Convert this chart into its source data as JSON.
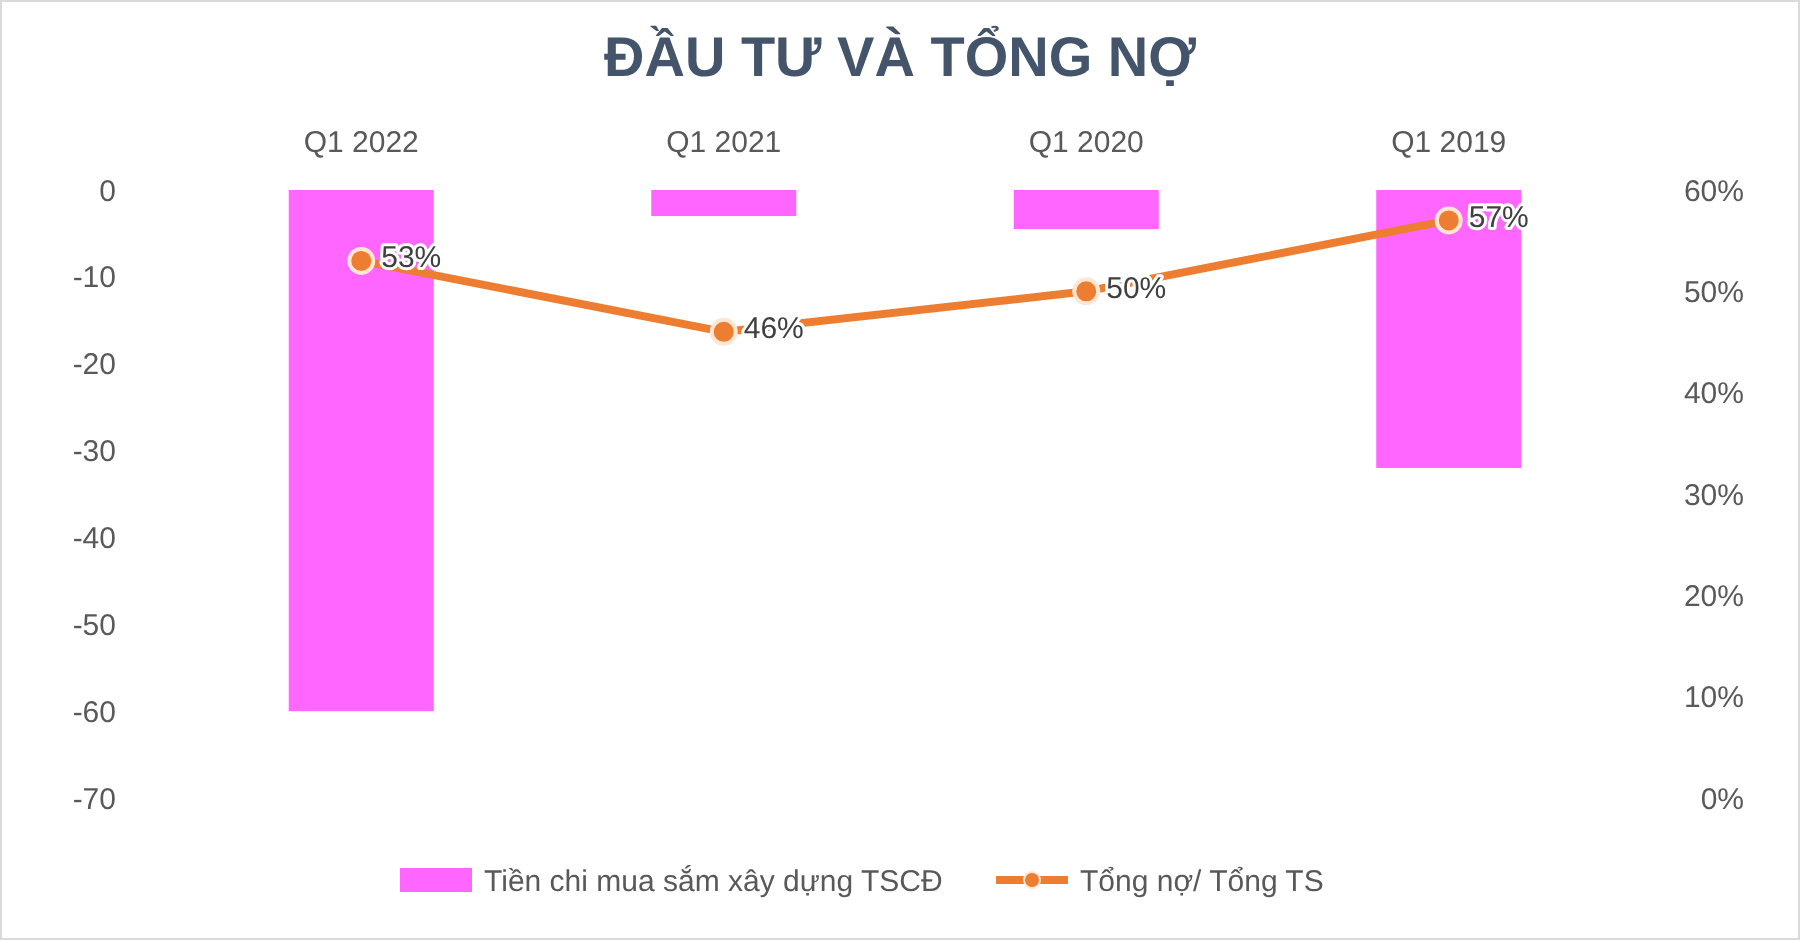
{
  "chart_data": {
    "type": "bar",
    "title": "ĐẦU TƯ VÀ TỔNG NỢ",
    "categories": [
      "Q1 2022",
      "Q1 2021",
      "Q1 2020",
      "Q1 2019"
    ],
    "series": [
      {
        "name": "Tiền chi mua sắm xây dựng TSCĐ",
        "color": "#ff66ff",
        "values": [
          -60,
          -3,
          -4.5,
          -32
        ]
      },
      {
        "name": "Tổng nợ/ Tổng TS",
        "type": "line",
        "axis": "y2",
        "color": "#ed7d31",
        "values": [
          53,
          46,
          50,
          57
        ],
        "value_labels": [
          "53%",
          "46%",
          "50%",
          "57%"
        ],
        "marker": "circle"
      }
    ],
    "ylim": [
      -70,
      0
    ],
    "yticks": [
      -70,
      -60,
      -50,
      -40,
      -30,
      -20,
      -10,
      0
    ],
    "y2lim": [
      0,
      60
    ],
    "y2ticks": [
      {
        "value": 0,
        "label": "0%"
      },
      {
        "value": 10,
        "label": "10%"
      },
      {
        "value": 20,
        "label": "20%"
      },
      {
        "value": 30,
        "label": "30%"
      },
      {
        "value": 40,
        "label": "40%"
      },
      {
        "value": 50,
        "label": "50%"
      },
      {
        "value": 60,
        "label": "60%"
      }
    ],
    "legend": "bottom",
    "grid": false
  }
}
